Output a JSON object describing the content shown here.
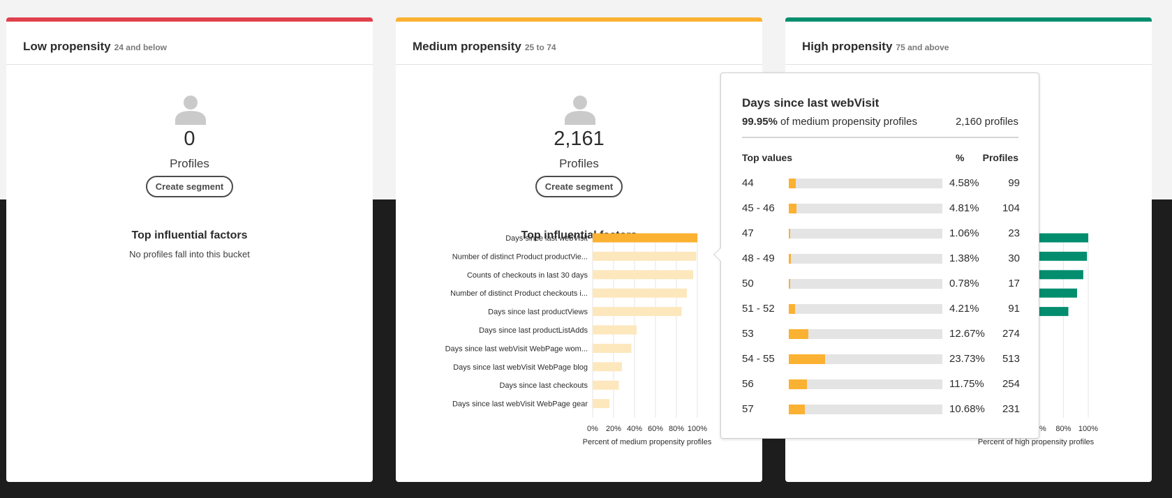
{
  "colors": {
    "low": "#e0404c",
    "medium": "#fbb131",
    "medium_light": "#fde7bd",
    "high": "#028e6e"
  },
  "cards": [
    {
      "title": "Low propensity",
      "range": "24 and below",
      "count": "0",
      "count_label": "Profiles",
      "button": "Create segment",
      "factors_title": "Top influential factors",
      "empty_message": "No profiles fall into this bucket"
    },
    {
      "title": "Medium propensity",
      "range": "25 to 74",
      "count": "2,161",
      "count_label": "Profiles",
      "button": "Create segment",
      "factors_title": "Top influential factors"
    },
    {
      "title": "High propensity",
      "range": "75 and above"
    }
  ],
  "chart_data": [
    {
      "type": "bar",
      "orientation": "horizontal",
      "categories": [
        "Days since last webVisit",
        "Number of distinct Product productVie...",
        "Counts of checkouts in last 30 days",
        "Number of distinct Product checkouts i...",
        "Days since last productViews",
        "Days since last productListAdds",
        "Days since last webVisit WebPage wom...",
        "Days since last webVisit WebPage blog",
        "Days since last checkouts",
        "Days since last webVisit WebPage gear"
      ],
      "values": [
        100,
        99,
        96,
        90,
        85,
        42,
        37,
        28,
        25,
        16
      ],
      "highlighted_index": 0,
      "xticks": [
        "0%",
        "20%",
        "40%",
        "60%",
        "80%",
        "100%"
      ],
      "xlabel": "Percent of medium propensity profiles",
      "xlim": [
        0,
        100
      ],
      "grid": true
    },
    {
      "type": "bar",
      "orientation": "horizontal",
      "values": [
        100,
        99,
        96,
        91,
        84
      ],
      "xticks": [
        "60%",
        "80%",
        "100%"
      ],
      "xlabel": "Percent of high propensity profiles",
      "xlim": [
        0,
        100
      ],
      "grid": true,
      "partially_hidden": true
    }
  ],
  "popover": {
    "title": "Days since last webVisit",
    "share_value": "99.95%",
    "share_text": " of medium propensity profiles",
    "profiles_text": "2,160 profiles",
    "col_values": "Top values",
    "col_pct": "%",
    "col_profiles": "Profiles",
    "rows": [
      {
        "label": "44",
        "pct": "4.58%",
        "fraction": 0.0458,
        "profiles": "99"
      },
      {
        "label": "45 - 46",
        "pct": "4.81%",
        "fraction": 0.0481,
        "profiles": "104"
      },
      {
        "label": "47",
        "pct": "1.06%",
        "fraction": 0.0106,
        "profiles": "23"
      },
      {
        "label": "48 - 49",
        "pct": "1.38%",
        "fraction": 0.0138,
        "profiles": "30"
      },
      {
        "label": "50",
        "pct": "0.78%",
        "fraction": 0.0078,
        "profiles": "17"
      },
      {
        "label": "51 - 52",
        "pct": "4.21%",
        "fraction": 0.0421,
        "profiles": "91"
      },
      {
        "label": "53",
        "pct": "12.67%",
        "fraction": 0.1267,
        "profiles": "274"
      },
      {
        "label": "54 - 55",
        "pct": "23.73%",
        "fraction": 0.2373,
        "profiles": "513"
      },
      {
        "label": "56",
        "pct": "11.75%",
        "fraction": 0.1175,
        "profiles": "254"
      },
      {
        "label": "57",
        "pct": "10.68%",
        "fraction": 0.1068,
        "profiles": "231"
      }
    ]
  }
}
